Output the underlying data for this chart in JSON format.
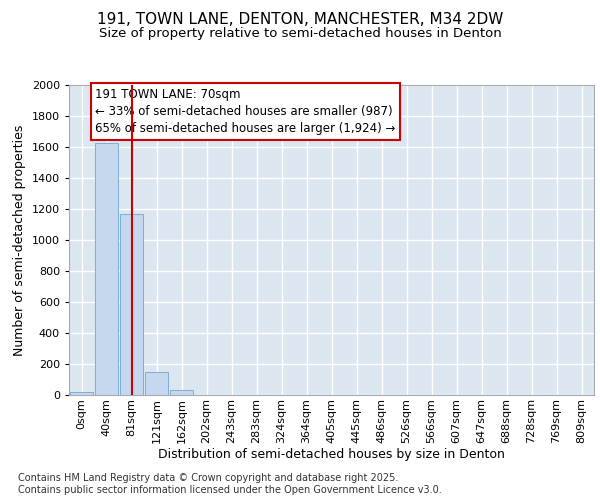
{
  "title_line1": "191, TOWN LANE, DENTON, MANCHESTER, M34 2DW",
  "title_line2": "Size of property relative to semi-detached houses in Denton",
  "xlabel": "Distribution of semi-detached houses by size in Denton",
  "ylabel": "Number of semi-detached properties",
  "categories": [
    "0sqm",
    "40sqm",
    "81sqm",
    "121sqm",
    "162sqm",
    "202sqm",
    "243sqm",
    "283sqm",
    "324sqm",
    "364sqm",
    "405sqm",
    "445sqm",
    "486sqm",
    "526sqm",
    "566sqm",
    "607sqm",
    "647sqm",
    "688sqm",
    "728sqm",
    "769sqm",
    "809sqm"
  ],
  "values": [
    20,
    1625,
    1170,
    150,
    30,
    0,
    0,
    0,
    0,
    0,
    0,
    0,
    0,
    0,
    0,
    0,
    0,
    0,
    0,
    0,
    0
  ],
  "bar_color": "#c5d8ee",
  "bar_edgecolor": "#7bafd4",
  "background_color": "#dce6f1",
  "grid_color": "#ffffff",
  "vline_color": "#cc0000",
  "annotation_text": "191 TOWN LANE: 70sqm\n← 33% of semi-detached houses are smaller (987)\n65% of semi-detached houses are larger (1,924) →",
  "annotation_box_color": "#cc0000",
  "ylim": [
    0,
    2000
  ],
  "yticks": [
    0,
    200,
    400,
    600,
    800,
    1000,
    1200,
    1400,
    1600,
    1800,
    2000
  ],
  "footnote": "Contains HM Land Registry data © Crown copyright and database right 2025.\nContains public sector information licensed under the Open Government Licence v3.0.",
  "title_fontsize": 11,
  "subtitle_fontsize": 9.5,
  "axis_label_fontsize": 9,
  "tick_fontsize": 8,
  "annotation_fontsize": 8.5,
  "footnote_fontsize": 7
}
